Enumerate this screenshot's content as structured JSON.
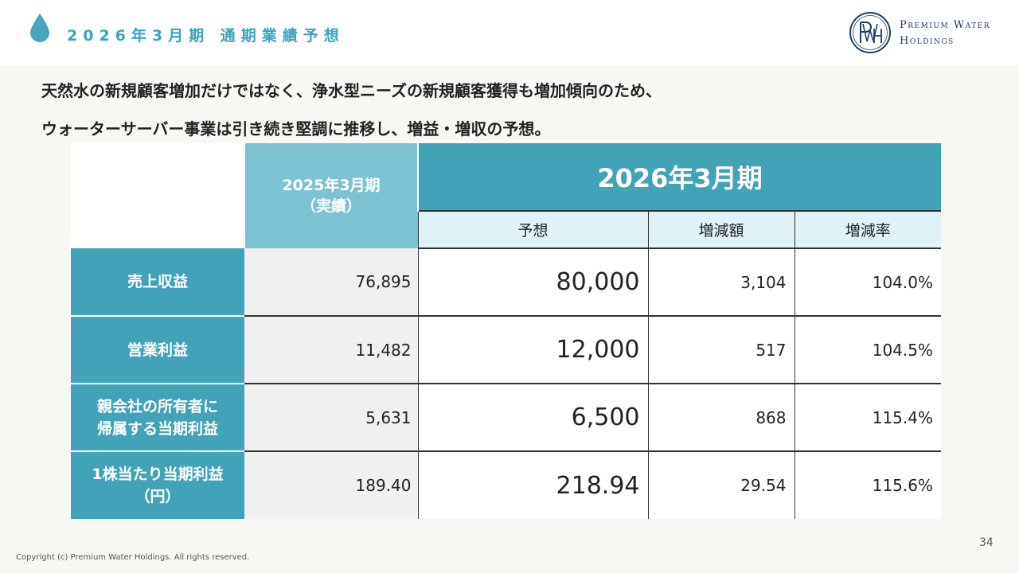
{
  "header": {
    "title": "2026年3月期 通期業績予想",
    "logo_icon": "pwh-monogram-icon",
    "logo_line1": "Premium Water",
    "logo_line2": "Holdings",
    "colors": {
      "accent": "#3ea3bb",
      "dark": "#41a2b8",
      "light": "#7cc3d2",
      "navy": "#1e3f66"
    }
  },
  "lead": {
    "line1": "天然水の新規顧客増加だけではなく、浄水型ニーズの新規顧客獲得も増加傾向のため、",
    "line2": "ウォーターサーバー事業は引き続き堅調に推移し、増益・増収の予想。"
  },
  "table": {
    "prev_header_line1": "2025年3月期",
    "prev_header_line2": "（実績）",
    "cur_header": "2026年3月期",
    "sub_headers": [
      "予想",
      "増減額",
      "増減率"
    ],
    "rows": [
      {
        "label": [
          "売上収益"
        ],
        "prev": "76,895",
        "forecast": "80,000",
        "change": "3,104",
        "rate": "104.0%"
      },
      {
        "label": [
          "営業利益"
        ],
        "prev": "11,482",
        "forecast": "12,000",
        "change": "517",
        "rate": "104.5%"
      },
      {
        "label": [
          "親会社の所有者に",
          "帰属する当期利益"
        ],
        "prev": "5,631",
        "forecast": "6,500",
        "change": "868",
        "rate": "115.4%"
      },
      {
        "label": [
          "1株当たり当期利益",
          "（円）"
        ],
        "prev": "189.40",
        "forecast": "218.94",
        "change": "29.54",
        "rate": "115.6%"
      }
    ]
  },
  "footer": {
    "page_number": "34",
    "copyright": "Copyright (c) Premium Water Holdings. All rights reserved."
  }
}
